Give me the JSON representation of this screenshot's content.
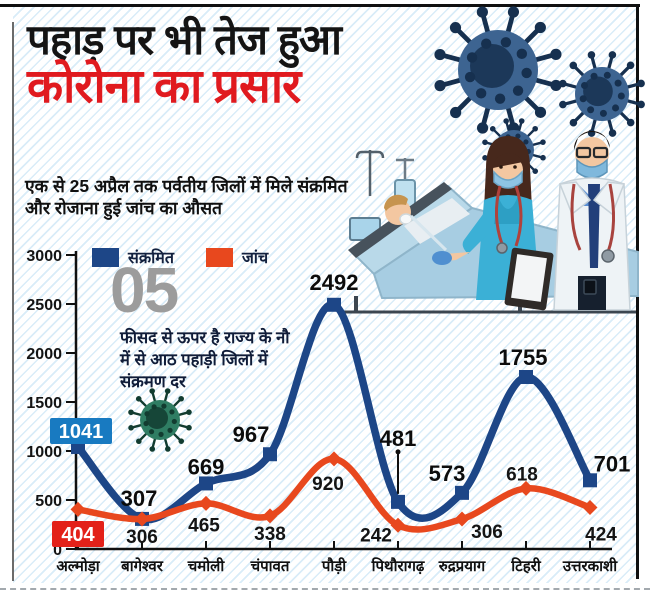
{
  "header": {
    "title_line1": "पहाड़ पर भी तेज हुआ",
    "title_line2": "कोरोना का प्रसार",
    "subtitle": "एक से 25 अप्रैल तक पर्वतीय जिलों में मिले संक्रमित और रोजाना हुई जांच का औसत"
  },
  "highlight": {
    "number": "05",
    "note": "फीसद से ऊपर है राज्य के नौ में से आठ पहाड़ी जिलों में संक्रमण दर"
  },
  "chart_data": {
    "type": "line",
    "categories": [
      "अल्मोड़ा",
      "बागेश्वर",
      "चमोली",
      "चंपावत",
      "पौड़ी",
      "पिथौरागढ़",
      "रुद्रप्रयाग",
      "टिहरी",
      "उत्तरकाशी"
    ],
    "series": [
      {
        "name": "संक्रमित",
        "color": "#1d4687",
        "marker": "square",
        "values": [
          1041,
          307,
          669,
          967,
          2492,
          481,
          573,
          1755,
          701
        ]
      },
      {
        "name": "जांच",
        "color": "#e8481e",
        "marker": "diamond",
        "values": [
          404,
          306,
          465,
          338,
          920,
          242,
          306,
          618,
          424
        ]
      }
    ],
    "ylim": [
      0,
      3000
    ],
    "yticks": [
      0,
      500,
      1000,
      1500,
      2000,
      2500,
      3000
    ],
    "legend_position": "top-left",
    "grid": false,
    "first_point_badge_colors": {
      "संक्रमित": "#187ac1",
      "जांच": "#e32119"
    }
  },
  "colors": {
    "title_black": "#141414",
    "title_red": "#e01a1f",
    "series_blue": "#1d4687",
    "series_orange": "#e8481e",
    "badge_blue": "#187ac1",
    "badge_red": "#e32119",
    "big_number_gray": "#9c9c9c",
    "hatch_blue": "#d9ecf8"
  },
  "icons": {
    "virus_large": "coronavirus",
    "virus_medium": "coronavirus",
    "virus_small_chart": "coronavirus",
    "illustration": "covid-swab-test-scene"
  }
}
